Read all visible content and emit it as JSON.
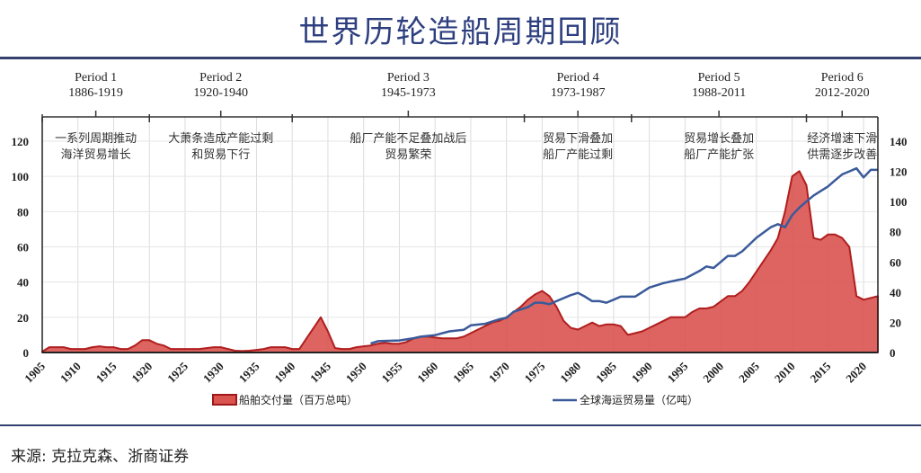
{
  "title": "世界历轮造船周期回顾",
  "source": "来源: 克拉克森、浙商证券",
  "chart_data": {
    "type": "area+line",
    "title": "世界历轮造船周期回顾",
    "x_range": [
      1905,
      2022
    ],
    "x_ticks": [
      "1905",
      "1910",
      "1915",
      "1920",
      "1925",
      "1930",
      "1935",
      "1940",
      "1945",
      "1950",
      "1955",
      "1960",
      "1965",
      "1970",
      "1975",
      "1980",
      "1985",
      "1990",
      "1995",
      "2000",
      "2005",
      "2010",
      "2015",
      "2020"
    ],
    "y_left": {
      "range": [
        0,
        120
      ],
      "ticks": [
        "0",
        "20",
        "40",
        "60",
        "80",
        "100",
        "120"
      ]
    },
    "y_right": {
      "range": [
        0,
        140
      ],
      "ticks": [
        "0",
        "20",
        "40",
        "60",
        "80",
        "100",
        "120",
        "140"
      ]
    },
    "grid": true,
    "legend_position": "bottom",
    "periods": [
      {
        "name": "Period 1",
        "years": "1886-1919",
        "note": [
          "一系列周期推动",
          "海洋贸易增长"
        ]
      },
      {
        "name": "Period 2",
        "years": "1920-1940",
        "note": [
          "大萧条造成产能过剩",
          "和贸易下行"
        ]
      },
      {
        "name": "Period 3",
        "years": "1945-1973",
        "note": [
          "船厂产能不足叠加战后",
          "贸易繁荣"
        ]
      },
      {
        "name": "Period 4",
        "years": "1973-1987",
        "note": [
          "贸易下滑叠加",
          "船厂产能过剩"
        ]
      },
      {
        "name": "Period 5",
        "years": "1988-2011",
        "note": [
          "贸易增长叠加",
          "船厂产能扩张"
        ]
      },
      {
        "name": "Period 6",
        "years": "2012-2020",
        "note": [
          "经济增速下滑",
          "供需逐步改善"
        ]
      }
    ],
    "series": [
      {
        "name": "船舶交付量（百万总吨）",
        "type": "area",
        "axis": "left",
        "color": "#d9534f",
        "x": [
          1905,
          1906,
          1907,
          1908,
          1909,
          1910,
          1911,
          1912,
          1913,
          1914,
          1915,
          1916,
          1917,
          1918,
          1919,
          1920,
          1921,
          1922,
          1923,
          1924,
          1925,
          1926,
          1927,
          1928,
          1929,
          1930,
          1931,
          1932,
          1933,
          1934,
          1935,
          1936,
          1937,
          1938,
          1939,
          1940,
          1941,
          1942,
          1943,
          1944,
          1945,
          1946,
          1947,
          1948,
          1949,
          1950,
          1951,
          1952,
          1953,
          1954,
          1955,
          1956,
          1957,
          1958,
          1959,
          1960,
          1961,
          1962,
          1963,
          1964,
          1965,
          1966,
          1967,
          1968,
          1969,
          1970,
          1971,
          1972,
          1973,
          1974,
          1975,
          1976,
          1977,
          1978,
          1979,
          1980,
          1981,
          1982,
          1983,
          1984,
          1985,
          1986,
          1987,
          1988,
          1989,
          1990,
          1991,
          1992,
          1993,
          1994,
          1995,
          1996,
          1997,
          1998,
          1999,
          2000,
          2001,
          2002,
          2003,
          2004,
          2005,
          2006,
          2007,
          2008,
          2009,
          2010,
          2011,
          2012,
          2013,
          2014,
          2015,
          2016,
          2017,
          2018,
          2019,
          2020,
          2021,
          2022
        ],
        "values": [
          0.5,
          3,
          3,
          3,
          2,
          2,
          2,
          3,
          3.5,
          3,
          3,
          2,
          2,
          4,
          7,
          7,
          5,
          4,
          2,
          2,
          2,
          2,
          2,
          2.5,
          3,
          3,
          2,
          1,
          0.8,
          1,
          1.5,
          2,
          3,
          3,
          3,
          2,
          2,
          8,
          14,
          20,
          12,
          2.5,
          2,
          2,
          3,
          3.5,
          4,
          5,
          5.5,
          5,
          5,
          6,
          8,
          9,
          9,
          8.5,
          8,
          8,
          8,
          9,
          11,
          13,
          15,
          17,
          18,
          20,
          23,
          26,
          30,
          33,
          35,
          32,
          26,
          18,
          14,
          13,
          15,
          17,
          15,
          16,
          16,
          15,
          10,
          11,
          12,
          14,
          16,
          18,
          20,
          20,
          20,
          23,
          25,
          25,
          26,
          29,
          32,
          32,
          35,
          40,
          46,
          52,
          58,
          65,
          80,
          100,
          103,
          95,
          65,
          64,
          67,
          67,
          65,
          60,
          32,
          30,
          31,
          32
        ]
      },
      {
        "name": "全球海运贸易量（亿吨）",
        "type": "line",
        "axis": "right",
        "color": "#3a5a9a",
        "x": [
          1951,
          1952,
          1955,
          1957,
          1958,
          1960,
          1962,
          1964,
          1965,
          1967,
          1969,
          1970,
          1971,
          1973,
          1974,
          1975,
          1976,
          1977,
          1979,
          1980,
          1981,
          1982,
          1983,
          1984,
          1985,
          1986,
          1987,
          1988,
          1989,
          1990,
          1992,
          1994,
          1995,
          1997,
          1998,
          1999,
          2000,
          2001,
          2002,
          2003,
          2005,
          2007,
          2008,
          2009,
          2010,
          2011,
          2012,
          2013,
          2014,
          2015,
          2016,
          2017,
          2018,
          2019,
          2020,
          2021,
          2022
        ],
        "values": [
          6,
          7.5,
          8,
          9.5,
          10.5,
          11.5,
          14,
          15,
          18,
          19,
          22,
          23,
          27,
          30,
          33,
          33,
          32,
          34,
          38,
          39.5,
          37,
          34,
          34,
          33,
          35,
          37,
          37,
          37,
          40,
          43,
          46,
          48,
          49,
          54,
          57,
          56,
          60,
          64,
          64,
          67,
          76,
          83,
          85,
          83,
          91,
          96,
          100,
          104,
          107,
          110,
          114,
          118,
          120,
          122,
          116,
          121,
          121
        ]
      }
    ]
  }
}
